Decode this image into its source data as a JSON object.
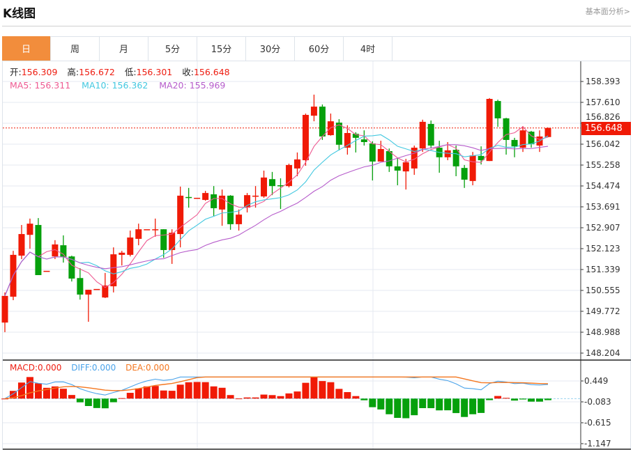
{
  "header": {
    "title": "K线图",
    "link": "基本面分析>"
  },
  "tabs": [
    {
      "label": "日",
      "active": true
    },
    {
      "label": "周"
    },
    {
      "label": "月"
    },
    {
      "label": "5分"
    },
    {
      "label": "15分"
    },
    {
      "label": "30分"
    },
    {
      "label": "60分"
    },
    {
      "label": "4时"
    }
  ],
  "ohlc": {
    "open_label": "开:",
    "open": "156.309",
    "high_label": "高:",
    "high": "156.672",
    "low_label": "低:",
    "low": "156.301",
    "close_label": "收:",
    "close": "156.648"
  },
  "ma": {
    "ma5": "MA5: 156.311",
    "ma10": "MA10: 156.362",
    "ma20": "MA20: 155.969"
  },
  "macd_labels": {
    "macd": "MACD:0.000",
    "diff": "DIFF:0.000",
    "dea": "DEA:0.000"
  },
  "current_price": "156.648",
  "hidden_price_label": "156.826",
  "colors": {
    "up": "#f01a06",
    "down": "#06a00c",
    "ma5": "#ee5a92",
    "ma10": "#42c8e0",
    "ma20": "#b65ccb",
    "diff": "#4aa3ea",
    "dea": "#f4761e",
    "accent": "#f28d3c"
  },
  "chart_data": {
    "type": "candlestick",
    "price_axis": {
      "ticks": [
        158.393,
        157.61,
        156.826,
        156.042,
        155.258,
        154.474,
        153.691,
        152.907,
        152.123,
        151.339,
        150.555,
        149.772,
        148.988,
        148.204
      ]
    },
    "macd_axis": {
      "ticks": [
        0.449,
        -0.083,
        -0.615,
        -1.147
      ]
    },
    "candles": [
      [
        149.35,
        150.48,
        148.99,
        150.35
      ],
      [
        150.32,
        152.04,
        150.19,
        151.89
      ],
      [
        151.86,
        153.01,
        151.73,
        152.67
      ],
      [
        152.64,
        153.25,
        152.12,
        153.06
      ],
      [
        153.01,
        153.27,
        151.13,
        151.13
      ],
      [
        151.29,
        151.29,
        151.29,
        151.29
      ],
      [
        151.83,
        152.44,
        151.73,
        152.28
      ],
      [
        152.25,
        152.62,
        151.6,
        151.81
      ],
      [
        151.83,
        151.86,
        150.89,
        151.0
      ],
      [
        151.02,
        151.39,
        150.21,
        150.4
      ],
      [
        150.4,
        150.58,
        149.38,
        150.58
      ],
      [
        150.61,
        150.61,
        150.61,
        150.61
      ],
      [
        150.29,
        151.21,
        150.27,
        150.74
      ],
      [
        150.71,
        152.17,
        150.48,
        151.91
      ],
      [
        151.89,
        152.04,
        151.49,
        151.97
      ],
      [
        151.89,
        152.8,
        151.83,
        152.54
      ],
      [
        152.49,
        153.06,
        152.25,
        152.85
      ],
      [
        152.85,
        152.85,
        152.85,
        152.85
      ],
      [
        152.85,
        153.25,
        152.57,
        152.85
      ],
      [
        152.85,
        152.85,
        151.78,
        152.07
      ],
      [
        152.07,
        152.85,
        151.55,
        152.72
      ],
      [
        152.67,
        154.45,
        152.17,
        154.11
      ],
      [
        154.06,
        154.4,
        153.66,
        154.03
      ],
      [
        154.03,
        154.03,
        154.03,
        154.03
      ],
      [
        153.95,
        154.29,
        153.92,
        154.21
      ],
      [
        154.16,
        154.47,
        153.35,
        153.64
      ],
      [
        153.59,
        154.34,
        152.98,
        154.11
      ],
      [
        154.11,
        154.13,
        152.83,
        153.04
      ],
      [
        153.04,
        153.59,
        152.8,
        153.4
      ],
      [
        153.66,
        154.21,
        153.48,
        154.13
      ],
      [
        154.08,
        154.47,
        153.66,
        154.11
      ],
      [
        154.08,
        155.05,
        154.03,
        154.79
      ],
      [
        154.73,
        155.0,
        154.13,
        154.47
      ],
      [
        154.5,
        154.76,
        153.61,
        154.47
      ],
      [
        154.47,
        155.31,
        154.42,
        155.26
      ],
      [
        155.13,
        155.73,
        154.84,
        155.47
      ],
      [
        155.44,
        157.19,
        155.23,
        157.14
      ],
      [
        157.11,
        157.9,
        156.9,
        157.45
      ],
      [
        157.45,
        157.53,
        156.2,
        156.33
      ],
      [
        156.38,
        157.19,
        156.36,
        156.9
      ],
      [
        156.85,
        156.98,
        155.81,
        156.02
      ],
      [
        155.91,
        156.75,
        155.65,
        156.46
      ],
      [
        156.43,
        156.49,
        155.73,
        156.28
      ],
      [
        156.22,
        156.56,
        155.99,
        156.12
      ],
      [
        156.07,
        156.15,
        154.68,
        155.39
      ],
      [
        155.39,
        156.17,
        155.39,
        155.86
      ],
      [
        155.78,
        155.88,
        155.0,
        155.21
      ],
      [
        155.21,
        155.52,
        154.5,
        155.05
      ],
      [
        155.02,
        155.49,
        154.34,
        155.36
      ],
      [
        155.13,
        155.99,
        154.89,
        155.91
      ],
      [
        155.88,
        156.96,
        155.75,
        156.88
      ],
      [
        156.8,
        156.93,
        155.88,
        155.99
      ],
      [
        155.91,
        156.17,
        154.97,
        155.55
      ],
      [
        155.55,
        156.12,
        155.44,
        155.81
      ],
      [
        155.83,
        155.99,
        154.84,
        155.21
      ],
      [
        155.15,
        155.26,
        154.4,
        154.71
      ],
      [
        154.66,
        155.75,
        154.5,
        155.62
      ],
      [
        155.6,
        155.96,
        155.28,
        155.44
      ],
      [
        155.41,
        157.77,
        155.41,
        157.74
      ],
      [
        157.66,
        157.71,
        156.69,
        157.01
      ],
      [
        157.01,
        157.03,
        155.65,
        156.2
      ],
      [
        156.2,
        156.28,
        155.55,
        155.96
      ],
      [
        155.91,
        156.72,
        155.75,
        156.56
      ],
      [
        156.51,
        156.54,
        155.91,
        156.04
      ],
      [
        155.99,
        156.56,
        155.75,
        156.33
      ],
      [
        156.309,
        156.672,
        156.301,
        156.648
      ]
    ]
  }
}
